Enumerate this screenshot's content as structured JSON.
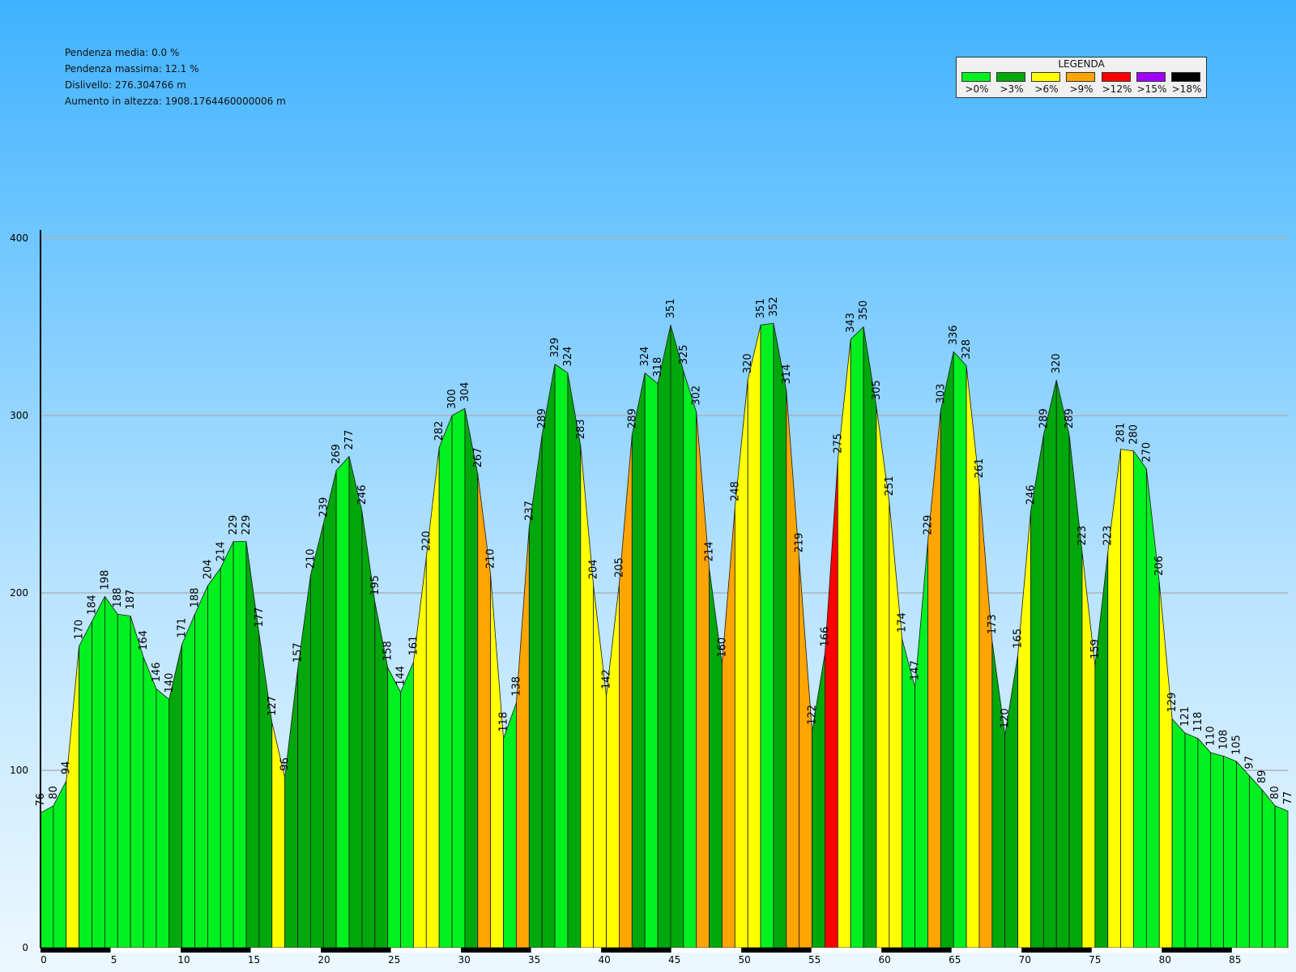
{
  "stats": {
    "avg_slope": "Pendenza media: 0.0 %",
    "max_slope": "Pendenza massima: 12.1 %",
    "elev_diff": "Dislivello: 276.304766 m",
    "gain": "Aumento in altezza: 1908.1764460000006 m"
  },
  "legend": {
    "title": "LEGENDA",
    "items": [
      {
        "label": ">0%",
        "color": "#00f020"
      },
      {
        "label": ">3%",
        "color": "#00a80c"
      },
      {
        "label": ">6%",
        "color": "#ffff00"
      },
      {
        "label": ">9%",
        "color": "#ffa500"
      },
      {
        "label": ">12%",
        "color": "#ff0000"
      },
      {
        "label": ">15%",
        "color": "#a000ff"
      },
      {
        "label": ">18%",
        "color": "#000000"
      }
    ]
  },
  "chart_data": {
    "type": "area",
    "xlim": [
      0,
      89
    ],
    "ylim": [
      0,
      400
    ],
    "xticks": [
      0,
      5,
      10,
      15,
      20,
      25,
      30,
      35,
      40,
      45,
      50,
      55,
      60,
      65,
      70,
      75,
      80,
      85
    ],
    "yticks": [
      0,
      100,
      200,
      300,
      400
    ],
    "grid": true,
    "elevations": [
      76,
      80,
      94,
      170,
      184,
      198,
      188,
      187,
      164,
      146,
      140,
      171,
      188,
      204,
      214,
      229,
      229,
      177,
      127,
      96,
      157,
      210,
      239,
      269,
      277,
      246,
      195,
      158,
      144,
      161,
      220,
      282,
      300,
      304,
      267,
      210,
      118,
      138,
      237,
      289,
      329,
      324,
      283,
      204,
      142,
      205,
      289,
      324,
      318,
      351,
      325,
      302,
      214,
      160,
      248,
      320,
      351,
      352,
      314,
      219,
      122,
      166,
      275,
      343,
      350,
      305,
      251,
      174,
      147,
      229,
      303,
      336,
      328,
      261,
      173,
      120,
      165,
      246,
      289,
      320,
      289,
      223,
      159,
      223,
      281,
      280,
      270,
      206,
      129,
      121,
      118,
      110,
      108,
      105,
      97,
      89,
      80,
      77
    ],
    "colors": [
      "l",
      "l",
      "y",
      "l",
      "l",
      "l",
      "l",
      "l",
      "l",
      "l",
      "d",
      "l",
      "l",
      "l",
      "l",
      "l",
      "d",
      "d",
      "y",
      "d",
      "d",
      "d",
      "d",
      "l",
      "d",
      "d",
      "d",
      "l",
      "l",
      "y",
      "y",
      "l",
      "l",
      "d",
      "o",
      "y",
      "l",
      "o",
      "d",
      "d",
      "l",
      "d",
      "y",
      "y",
      "y",
      "o",
      "d",
      "l",
      "d",
      "d",
      "l",
      "o",
      "d",
      "o",
      "y",
      "y",
      "l",
      "d",
      "o",
      "o",
      "d",
      "r",
      "y",
      "l",
      "d",
      "y",
      "y",
      "l",
      "l",
      "o",
      "d",
      "l",
      "y",
      "o",
      "d",
      "d",
      "y",
      "d",
      "d",
      "d",
      "d",
      "y",
      "d",
      "y",
      "y",
      "l",
      "l",
      "y",
      "l",
      "l",
      "l",
      "l",
      "l",
      "l",
      "l",
      "l",
      "l"
    ]
  }
}
